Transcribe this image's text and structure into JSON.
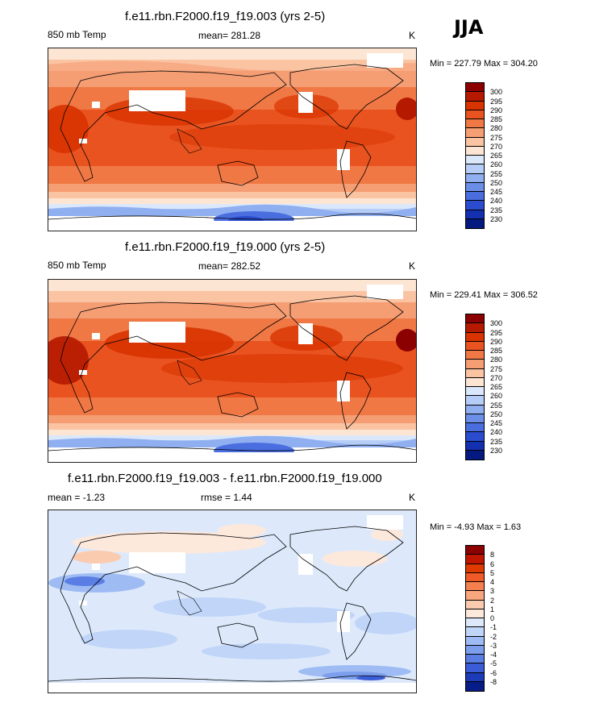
{
  "season": "JJA",
  "panels": [
    {
      "title": "f.e11.rbn.F2000.f19_f19.003 (yrs 2-5)",
      "left_label": "850 mb Temp",
      "center_label": "mean= 281.28",
      "units": "K",
      "minmax": "Min = 227.79 Max = 304.20",
      "colorbar": {
        "labels": [
          "300",
          "295",
          "290",
          "285",
          "280",
          "275",
          "270",
          "265",
          "260",
          "255",
          "250",
          "245",
          "240",
          "235",
          "230"
        ],
        "colors": [
          "#8b0000",
          "#b51a00",
          "#d83300",
          "#e9531f",
          "#f07845",
          "#f59d73",
          "#fac3a2",
          "#fde5d3",
          "#dbe8fb",
          "#b6cef7",
          "#8faff0",
          "#6b8fe8",
          "#4a6ee0",
          "#2b4ccf",
          "#1330b0",
          "#041a80"
        ]
      }
    },
    {
      "title": "f.e11.rbn.F2000.f19_f19.000 (yrs 2-5)",
      "left_label": "850 mb Temp",
      "center_label": "mean= 282.52",
      "units": "K",
      "minmax": "Min = 229.41 Max = 306.52",
      "colorbar": {
        "labels": [
          "300",
          "295",
          "290",
          "285",
          "280",
          "275",
          "270",
          "265",
          "260",
          "255",
          "250",
          "245",
          "240",
          "235",
          "230"
        ],
        "colors": [
          "#8b0000",
          "#b51a00",
          "#d83300",
          "#e9531f",
          "#f07845",
          "#f59d73",
          "#fac3a2",
          "#fde5d3",
          "#dbe8fb",
          "#b6cef7",
          "#8faff0",
          "#6b8fe8",
          "#4a6ee0",
          "#2b4ccf",
          "#1330b0",
          "#041a80"
        ]
      }
    },
    {
      "title": "f.e11.rbn.F2000.f19_f19.003 - f.e11.rbn.F2000.f19_f19.000",
      "left_label": "mean =  -1.23",
      "center_label": "rmse =   1.44",
      "units": "K",
      "minmax": "Min =  -4.93 Max =   1.63",
      "colorbar": {
        "labels": [
          "8",
          "6",
          "5",
          "4",
          "3",
          "2",
          "1",
          "0",
          "-1",
          "-2",
          "-3",
          "-4",
          "-5",
          "-6",
          "-8"
        ],
        "colors": [
          "#8b0000",
          "#c01600",
          "#e03a00",
          "#ef5a28",
          "#f4804f",
          "#f8a67e",
          "#fbcbb0",
          "#fde8dc",
          "#dde9fb",
          "#c0d5f8",
          "#9ebcf3",
          "#7c9eec",
          "#5a7ee4",
          "#3a5cd6",
          "#1c3bb8",
          "#061c86"
        ]
      }
    }
  ]
}
